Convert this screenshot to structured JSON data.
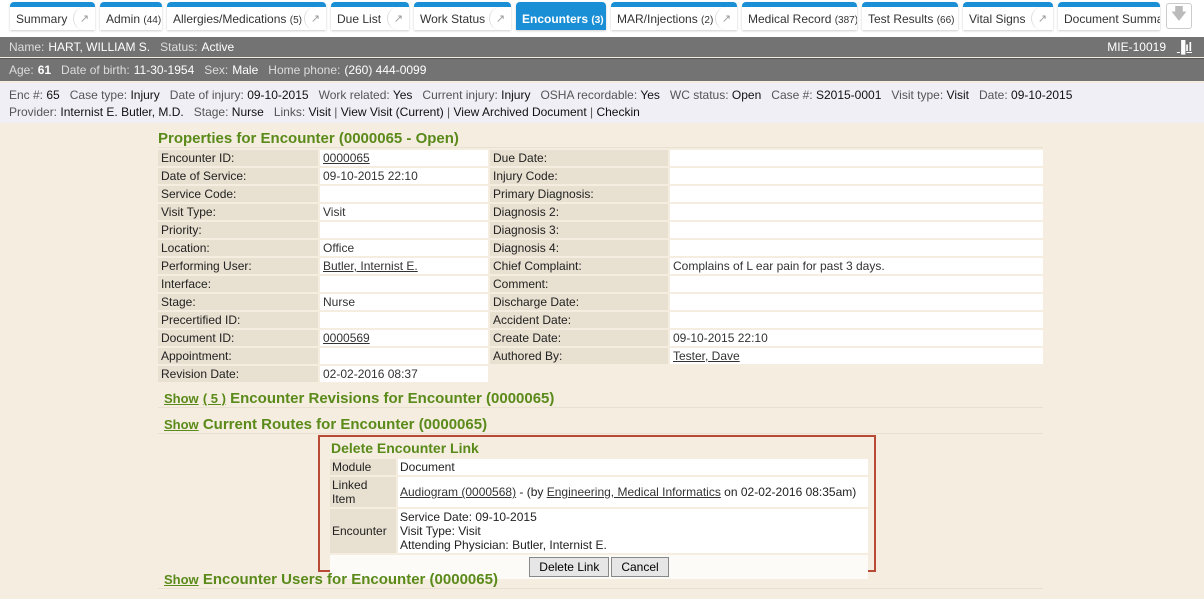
{
  "tabs": [
    {
      "label": "Summary",
      "count": "",
      "go": true
    },
    {
      "label": "Admin",
      "count": "(44)",
      "go": false
    },
    {
      "label": "Allergies/Medications",
      "count": "(5)",
      "go": true
    },
    {
      "label": "Due List",
      "count": "",
      "go": true
    },
    {
      "label": "Work Status",
      "count": "",
      "go": true
    },
    {
      "label": "Encounters",
      "count": "(3)",
      "go": false,
      "active": true
    },
    {
      "label": "MAR/Injections",
      "count": "(2)",
      "go": true
    },
    {
      "label": "Medical Record",
      "count": "(387)",
      "go": false
    },
    {
      "label": "Test Results",
      "count": "(66)",
      "go": false
    },
    {
      "label": "Vital Signs",
      "count": "",
      "go": true
    },
    {
      "label": "Document Summar",
      "count": "",
      "go": false
    }
  ],
  "patient": {
    "name_label": "Name:",
    "name": "HART, WILLIAM S.",
    "status_label": "Status:",
    "status": "Active",
    "mrn": "MIE-10019",
    "age_label": "Age:",
    "age": "61",
    "dob_label": "Date of birth:",
    "dob": "11-30-1954",
    "sex_label": "Sex:",
    "sex": "Male",
    "phone_label": "Home phone:",
    "phone": "(260) 444-0099"
  },
  "enc_info": {
    "line1": [
      [
        "Enc #:",
        "65"
      ],
      [
        "Case type:",
        "Injury"
      ],
      [
        "Date of injury:",
        "09-10-2015"
      ],
      [
        "Work related:",
        "Yes"
      ],
      [
        "Current injury:",
        "Injury"
      ],
      [
        "OSHA recordable:",
        "Yes"
      ],
      [
        "WC status:",
        "Open"
      ],
      [
        "Case #:",
        "S2015-0001"
      ],
      [
        "Visit type:",
        "Visit"
      ],
      [
        "Date:",
        "09-10-2015"
      ]
    ],
    "line2": [
      [
        "Provider:",
        "Internist E. Butler, M.D."
      ],
      [
        "Stage:",
        "Nurse"
      ]
    ],
    "links_label": "Links:",
    "links": [
      "Visit",
      "View Visit (Current)",
      "View Archived Document",
      "Checkin"
    ]
  },
  "properties": {
    "title": "Properties for Encounter (0000065 - Open)",
    "rows": [
      [
        "Encounter ID:",
        "0000065",
        "Due Date:",
        ""
      ],
      [
        "Date of Service:",
        "09-10-2015 22:10",
        "Injury Code:",
        ""
      ],
      [
        "Service Code:",
        "",
        "Primary Diagnosis:",
        ""
      ],
      [
        "Visit Type:",
        "Visit",
        "Diagnosis 2:",
        ""
      ],
      [
        "Priority:",
        "",
        "Diagnosis 3:",
        ""
      ],
      [
        "Location:",
        "Office",
        "Diagnosis 4:",
        ""
      ],
      [
        "Performing User:",
        "Butler, Internist E.",
        "Chief Complaint:",
        "Complains of L ear pain for past 3 days."
      ],
      [
        "Interface:",
        "",
        "Comment:",
        ""
      ],
      [
        "Stage:",
        "Nurse",
        "Discharge Date:",
        ""
      ],
      [
        "Precertified ID:",
        "",
        "Accident Date:",
        ""
      ],
      [
        "Document ID:",
        "0000569",
        "Create Date:",
        "09-10-2015 22:10"
      ],
      [
        "Appointment:",
        "",
        "Authored By:",
        "Tester, Dave"
      ],
      [
        "Revision Date:",
        "02-02-2016 08:37",
        "",
        ""
      ]
    ],
    "links": [
      "0000065",
      "Butler, Internist E.",
      "0000569",
      "Tester, Dave"
    ]
  },
  "sections": [
    {
      "show": "Show",
      "count": "( 5 )",
      "title": "Encounter Revisions for Encounter (0000065)"
    },
    {
      "show": "Show",
      "title": "Current Routes for Encounter (0000065)"
    },
    {
      "show": "Show",
      "title": "Encounter Users for Encounter (0000065)"
    }
  ],
  "dialog": {
    "title": "Delete Encounter Link",
    "module_label": "Module",
    "module": "Document",
    "linked_label": "Linked Item",
    "linked_item": "Audiogram (0000568)",
    "linked_mid": " - (by ",
    "linked_user": "Engineering, Medical Informatics",
    "linked_end": " on 02-02-2016 08:35am)",
    "encounter_label": "Encounter",
    "encounter_lines": [
      "Service Date: 09-10-2015",
      "Visit Type: Visit",
      "Attending Physician: Butler, Internist E."
    ],
    "delete_label": "Delete Link",
    "cancel_label": "Cancel"
  },
  "colors": {
    "tab_accent": "#1a8fd6",
    "section_title": "#5a8a1a",
    "dialog_border": "#b94a35",
    "header_bar": "#737373"
  }
}
